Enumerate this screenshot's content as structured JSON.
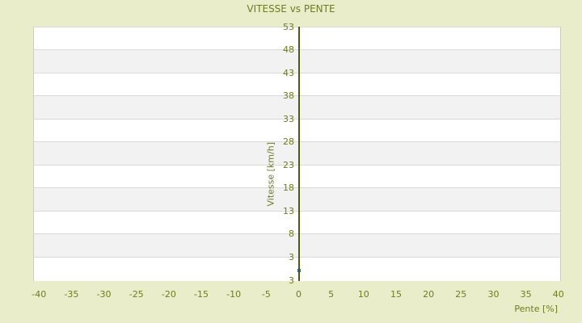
{
  "title": "VITESSE vs PENTE",
  "chart_data": {
    "type": "scatter",
    "title": "VITESSE vs PENTE",
    "xlabel": "Pente [%]",
    "ylabel": "Vitesse [km/h]",
    "x_ticks": [
      -40,
      -35,
      -30,
      -25,
      -20,
      -15,
      -10,
      -5,
      0,
      5,
      10,
      15,
      20,
      25,
      30,
      35,
      40
    ],
    "y_ticks": [
      53,
      48,
      43,
      38,
      33,
      28,
      23,
      18,
      13,
      8,
      3
    ],
    "y_axis_bottom_edge_label": "3",
    "xlim": [
      -40.9,
      40.4
    ],
    "ylim": [
      -2.3,
      53
    ],
    "grid": "horizontal-only",
    "alternating_horizontal_bands": true,
    "legend": "none",
    "y_axis_line_at_x": 0,
    "points": [
      {
        "x": 0,
        "y": 0
      }
    ],
    "colors": {
      "background": "#e9edca",
      "text": "#6e7c20",
      "axis_line": "#4c5a10",
      "marker": "#2e6868",
      "band_light": "#ffffff",
      "band_dark": "#f2f2f2",
      "gridline": "#d9d9d9",
      "plot_border": "#cbcbcb"
    }
  }
}
